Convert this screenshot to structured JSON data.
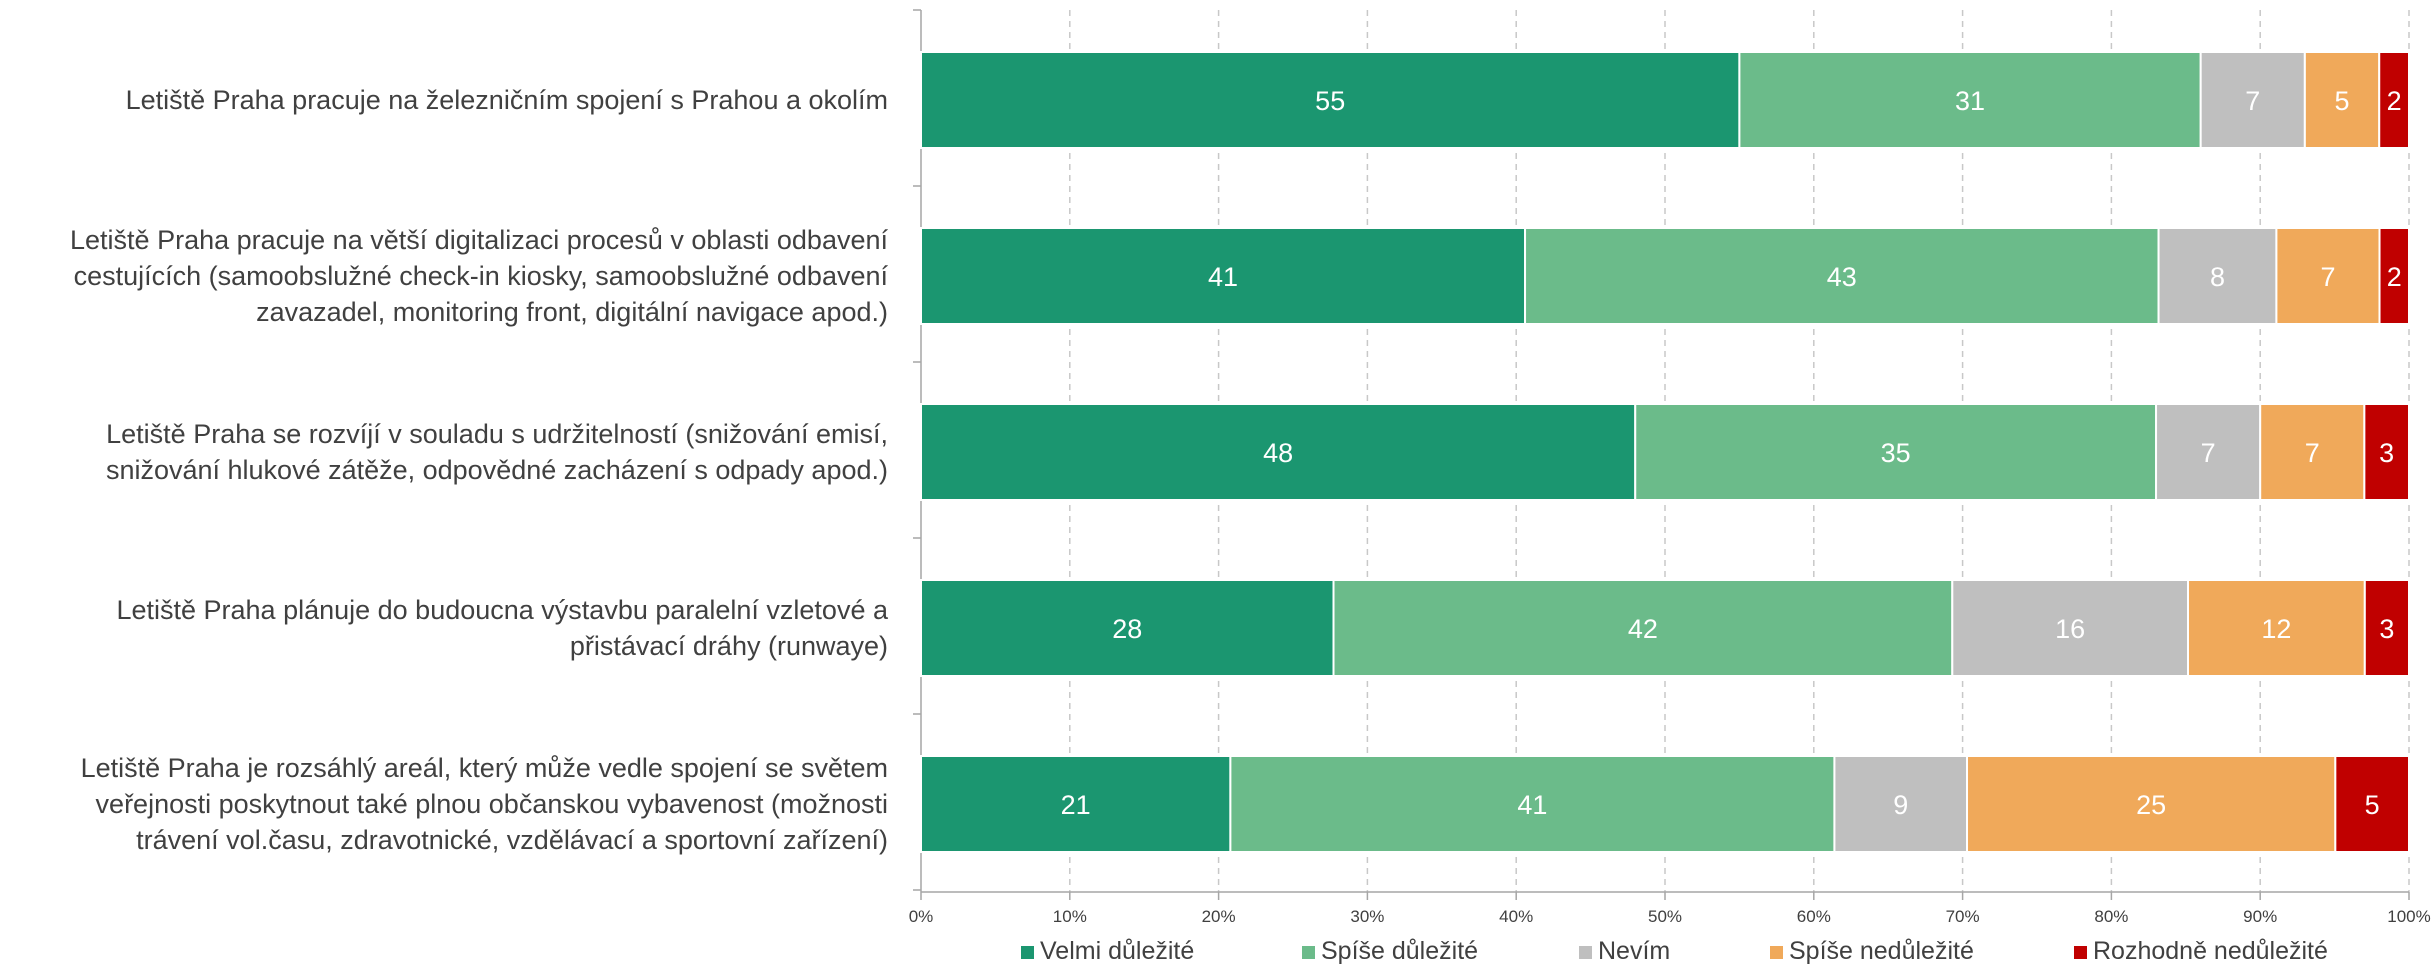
{
  "chart_data": {
    "type": "bar",
    "orientation": "horizontal",
    "stacked": "percent",
    "categories": [
      [
        "Letiště Praha pracuje na železničním spojení s Prahou a okolím"
      ],
      [
        "Letiště Praha pracuje na větší digitalizaci procesů v oblasti odbavení",
        "cestujících (samoobslužné check-in kiosky, samoobslužné odbavení",
        "zavazadel, monitoring front, digitální navigace apod.)"
      ],
      [
        "Letiště Praha se rozvíjí v souladu s udržitelností (snižování emisí,",
        "snižování hlukové zátěže, odpovědné zacházení s odpady apod.)"
      ],
      [
        "Letiště Praha plánuje do budoucna výstavbu paralelní vzletové a",
        "přistávací dráhy (runwaye)"
      ],
      [
        "Letiště Praha je rozsáhlý areál, který může vedle spojení se světem",
        "veřejnosti poskytnout také plnou občanskou vybavenost (možnosti",
        "trávení vol.času, zdravotnické, vzdělávací a sportovní zařízení)"
      ]
    ],
    "series": [
      {
        "name": "Velmi důležité",
        "color": "#1b9670",
        "values": [
          55,
          41,
          48,
          28,
          21
        ]
      },
      {
        "name": "Spíše důležité",
        "color": "#6bbb8a",
        "values": [
          31,
          43,
          35,
          42,
          41
        ]
      },
      {
        "name": "Nevím",
        "color": "#bfbfbf",
        "values": [
          7,
          8,
          7,
          16,
          9
        ]
      },
      {
        "name": "Spíše nedůležité",
        "color": "#f0a95a",
        "values": [
          5,
          7,
          7,
          12,
          25
        ]
      },
      {
        "name": "Rozhodně nedůležité",
        "color": "#c00000",
        "values": [
          2,
          2,
          3,
          3,
          5
        ]
      }
    ],
    "x_ticks": [
      "0%",
      "10%",
      "20%",
      "30%",
      "40%",
      "50%",
      "60%",
      "70%",
      "80%",
      "90%",
      "100%"
    ],
    "xlim": [
      0,
      100
    ],
    "grid": "vertical dashed",
    "legend_position": "bottom",
    "title": "",
    "xlabel": "",
    "ylabel": ""
  }
}
